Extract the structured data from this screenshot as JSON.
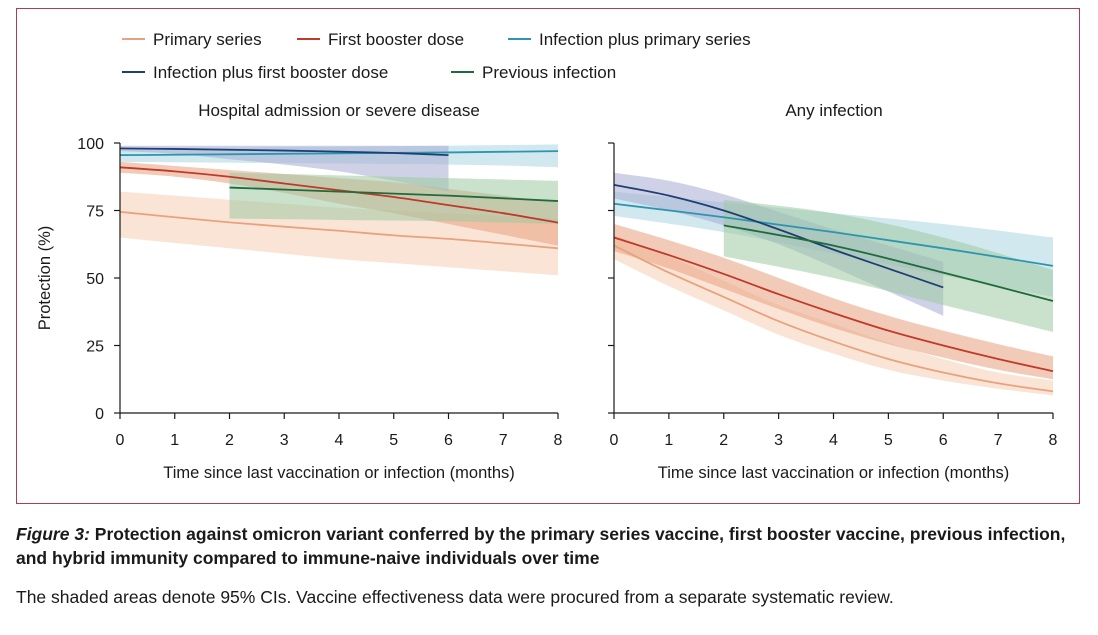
{
  "caption": {
    "label": "Figure 3:",
    "title": " Protection against omicron variant conferred by the primary series vaccine, first booster vaccine, previous infection, and hybrid immunity compared to immune-naive individuals over time",
    "note": "The shaded areas denote 95% CIs. Vaccine effectiveness data were procured from a separate systematic review."
  },
  "legend": [
    {
      "name": "Primary series",
      "color": "#e9a27d"
    },
    {
      "name": "First booster dose",
      "color": "#c0392b"
    },
    {
      "name": "Infection plus primary series",
      "color": "#2e95b0"
    },
    {
      "name": "Infection plus first booster dose",
      "color": "#1f3f74"
    },
    {
      "name": "Previous infection",
      "color": "#1f6b3d"
    }
  ],
  "chart_data": [
    {
      "type": "line",
      "title": "Hospital admission or severe disease",
      "xlabel": "Time since last vaccination or infection (months)",
      "ylabel": "Protection (%)",
      "xlim": [
        0,
        8
      ],
      "ylim": [
        0,
        100
      ],
      "xticks": [
        "0",
        "1",
        "2",
        "3",
        "4",
        "5",
        "6",
        "7",
        "8"
      ],
      "yticks": [
        "0",
        "25",
        "50",
        "75",
        "100"
      ],
      "grid": false,
      "series": [
        {
          "name": "Primary series",
          "color": "#e9a27d",
          "fill": "#f5cdb4",
          "x": [
            0,
            1,
            2,
            3,
            4,
            5,
            6,
            7,
            8
          ],
          "y": [
            74.5,
            72.5,
            70.6,
            69,
            67.5,
            65.8,
            64.5,
            62.8,
            61
          ],
          "lower": [
            65,
            63,
            61,
            59,
            57,
            55.5,
            54,
            52.5,
            51
          ],
          "upper": [
            82,
            80.5,
            79,
            77.5,
            76,
            75,
            74,
            73,
            72
          ]
        },
        {
          "name": "First booster dose",
          "color": "#c0392b",
          "fill": "#e7a07e",
          "x": [
            0,
            1,
            2,
            3,
            4,
            5,
            6,
            7,
            8
          ],
          "y": [
            91,
            89.5,
            87.5,
            85,
            82.5,
            80,
            77,
            74,
            70.5
          ],
          "lower": [
            89,
            87.5,
            85,
            81.5,
            77.5,
            74,
            70,
            66,
            62
          ],
          "upper": [
            93,
            91.5,
            90,
            88.5,
            87,
            85.5,
            83,
            80.5,
            78
          ]
        },
        {
          "name": "Infection plus primary series",
          "color": "#2e95b0",
          "fill": "#a9d5e0",
          "x": [
            0,
            6,
            8
          ],
          "y": [
            95.5,
            96.5,
            97
          ],
          "lower": [
            93,
            92,
            91
          ],
          "upper": [
            98,
            99,
            99.5
          ]
        },
        {
          "name": "Infection plus first booster dose",
          "color": "#1f3f74",
          "fill": "#a7add3",
          "x": [
            0,
            1,
            2,
            3,
            4,
            5,
            6
          ],
          "y": [
            98,
            97.8,
            97.5,
            97.2,
            96.8,
            96.3,
            95.5
          ],
          "lower": [
            97,
            96,
            94,
            92,
            89.5,
            86,
            82
          ],
          "upper": [
            99,
            99,
            99,
            99,
            99,
            99,
            99
          ]
        },
        {
          "name": "Previous infection",
          "color": "#1f6b3d",
          "fill": "#9fc9a2",
          "x": [
            2,
            4,
            6,
            8
          ],
          "y": [
            83.5,
            82,
            80.5,
            78.5
          ],
          "lower": [
            72,
            71.5,
            71,
            70
          ],
          "upper": [
            89,
            88,
            87,
            86
          ]
        }
      ]
    },
    {
      "type": "line",
      "title": "Any infection",
      "xlabel": "Time since last vaccination or infection (months)",
      "ylabel": "",
      "xlim": [
        0,
        8
      ],
      "ylim": [
        0,
        100
      ],
      "xticks": [
        "0",
        "1",
        "2",
        "3",
        "4",
        "5",
        "6",
        "7",
        "8"
      ],
      "yticks": [
        "0",
        "25",
        "50",
        "75",
        "100"
      ],
      "grid": false,
      "series": [
        {
          "name": "Primary series",
          "color": "#e9a27d",
          "fill": "#f5cdb4",
          "x": [
            0,
            1,
            2,
            3,
            4,
            5,
            6,
            7,
            8
          ],
          "y": [
            62,
            52,
            43,
            34,
            26.5,
            20,
            15,
            11,
            8
          ],
          "lower": [
            57,
            47,
            38,
            29,
            22,
            16,
            12,
            9,
            6.5
          ],
          "upper": [
            66,
            58,
            49,
            40,
            33,
            26,
            20,
            15,
            12
          ]
        },
        {
          "name": "First booster dose",
          "color": "#c0392b",
          "fill": "#e7a07e",
          "x": [
            0,
            1,
            2,
            3,
            4,
            5,
            6,
            7,
            8
          ],
          "y": [
            65,
            58.5,
            51.5,
            44,
            37,
            30.5,
            25,
            20,
            15.5
          ],
          "lower": [
            60,
            53.5,
            46,
            38.5,
            31.5,
            25.5,
            20.5,
            16,
            12.5
          ],
          "upper": [
            70,
            64,
            57.5,
            50,
            42.5,
            36,
            30.5,
            25.5,
            21
          ]
        },
        {
          "name": "Infection plus primary series",
          "color": "#2e95b0",
          "fill": "#a9d5e0",
          "x": [
            0,
            2,
            4,
            6,
            8
          ],
          "y": [
            77.5,
            72.5,
            67,
            61,
            54.5
          ],
          "lower": [
            73,
            67,
            59,
            51,
            43
          ],
          "upper": [
            82,
            78,
            74,
            70,
            65
          ]
        },
        {
          "name": "Infection plus first booster dose",
          "color": "#1f3f74",
          "fill": "#a7add3",
          "x": [
            0,
            1,
            2,
            3,
            4,
            5,
            6
          ],
          "y": [
            84.5,
            80.5,
            75,
            68,
            60.5,
            53.5,
            46.5
          ],
          "lower": [
            79.5,
            75,
            69.5,
            62.5,
            54,
            45,
            36
          ],
          "upper": [
            89,
            86,
            81,
            74.5,
            68,
            62,
            56
          ]
        },
        {
          "name": "Previous infection",
          "color": "#1f6b3d",
          "fill": "#9fc9a2",
          "x": [
            2,
            4,
            6,
            8
          ],
          "y": [
            69.5,
            62,
            52,
            41.5
          ],
          "lower": [
            58,
            50,
            40,
            30
          ],
          "upper": [
            79,
            74,
            65,
            53
          ]
        }
      ]
    }
  ]
}
